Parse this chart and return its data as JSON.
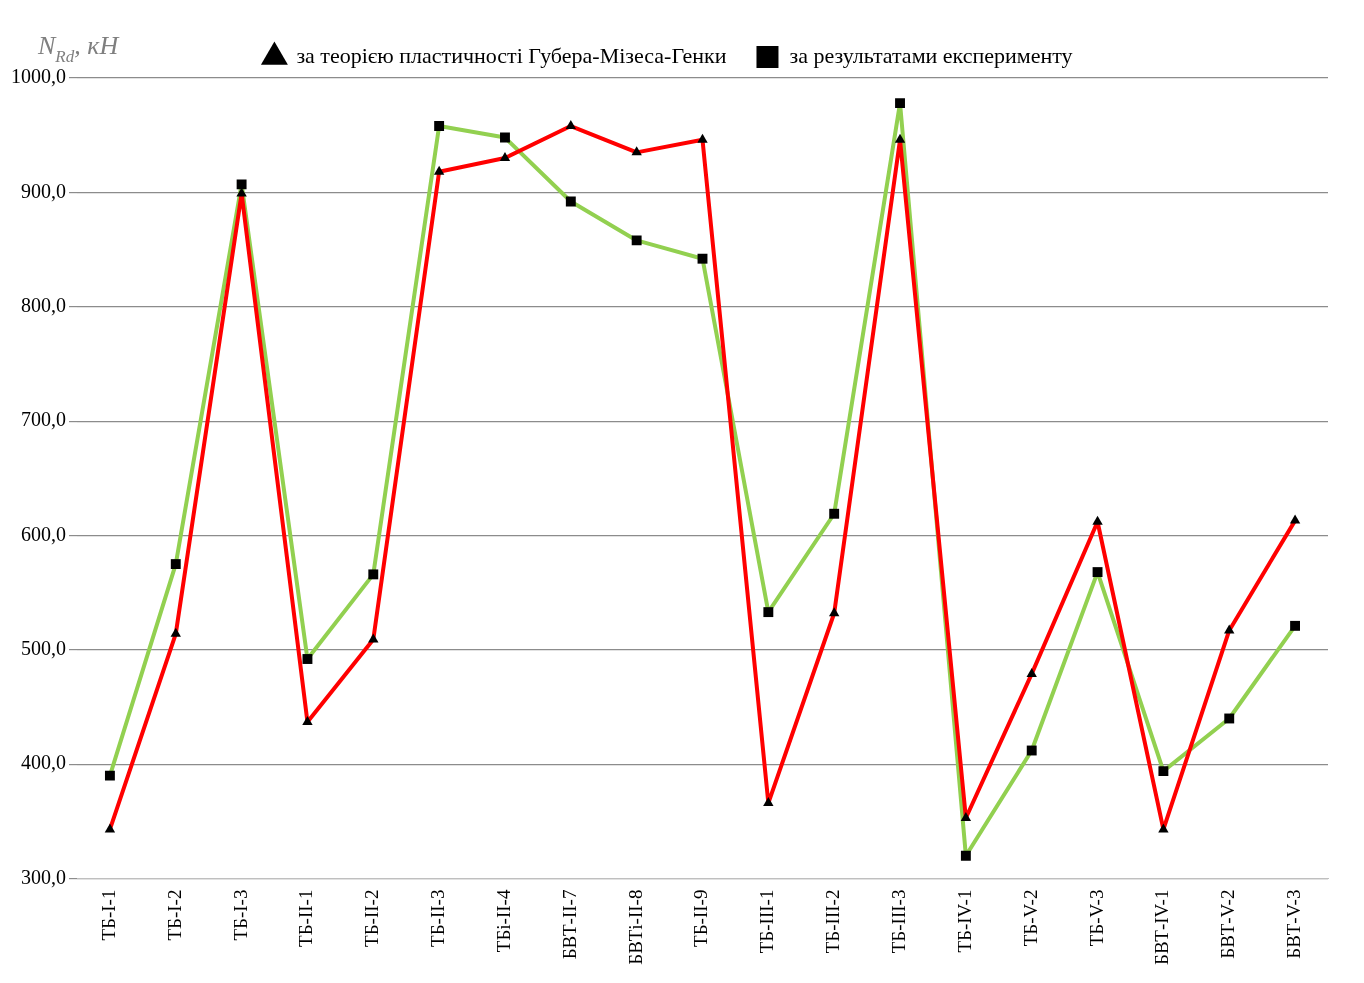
{
  "chart_data": {
    "type": "line",
    "ylabel": "N$_{Rd}$, кН",
    "categories": [
      "ТБ-I-1",
      "ТБ-I-2",
      "ТБ-I-3",
      "ТБ-II-1",
      "ТБ-II-2",
      "ТБ-II-3",
      "ТБі-II-4",
      "БВТ-II-7",
      "БВТі-II-8",
      "ТБ-II-9",
      "ТБ-III-1",
      "ТБ-III-2",
      "ТБ-III-3",
      "ТБ-IV-1",
      "ТБ-V-2",
      "ТБ-V-3",
      "БВТ-IV-1",
      "БВТ-V-2",
      "БВТ-V-3"
    ],
    "series": [
      {
        "name": "за теорією пластичності Губера-Мізеса-Генки",
        "color": "#ff0000",
        "marker": "triangle",
        "values": [
          343,
          514,
          899,
          437,
          509,
          918,
          930,
          958,
          935,
          946,
          366,
          532,
          946,
          353,
          479,
          612,
          343,
          517,
          613
        ]
      },
      {
        "name": "за результатами експерименту",
        "color": "#92d050",
        "marker": "square",
        "values": [
          390,
          575,
          907,
          492,
          566,
          958,
          948,
          892,
          858,
          842,
          533,
          619,
          978,
          320,
          412,
          568,
          394,
          440,
          521
        ]
      }
    ],
    "ylim": [
      300,
      1000
    ],
    "yticks": [
      {
        "value": 300,
        "label": "300,0"
      },
      {
        "value": 400,
        "label": "400,0"
      },
      {
        "value": 500,
        "label": "500,0"
      },
      {
        "value": 600,
        "label": "600,0"
      },
      {
        "value": 700,
        "label": "700,0"
      },
      {
        "value": 800,
        "label": "800,0"
      },
      {
        "value": 900,
        "label": "900,0"
      },
      {
        "value": 1000,
        "label": "1000,0"
      }
    ],
    "grid": "y",
    "legend": "top",
    "line_style": "solid"
  }
}
